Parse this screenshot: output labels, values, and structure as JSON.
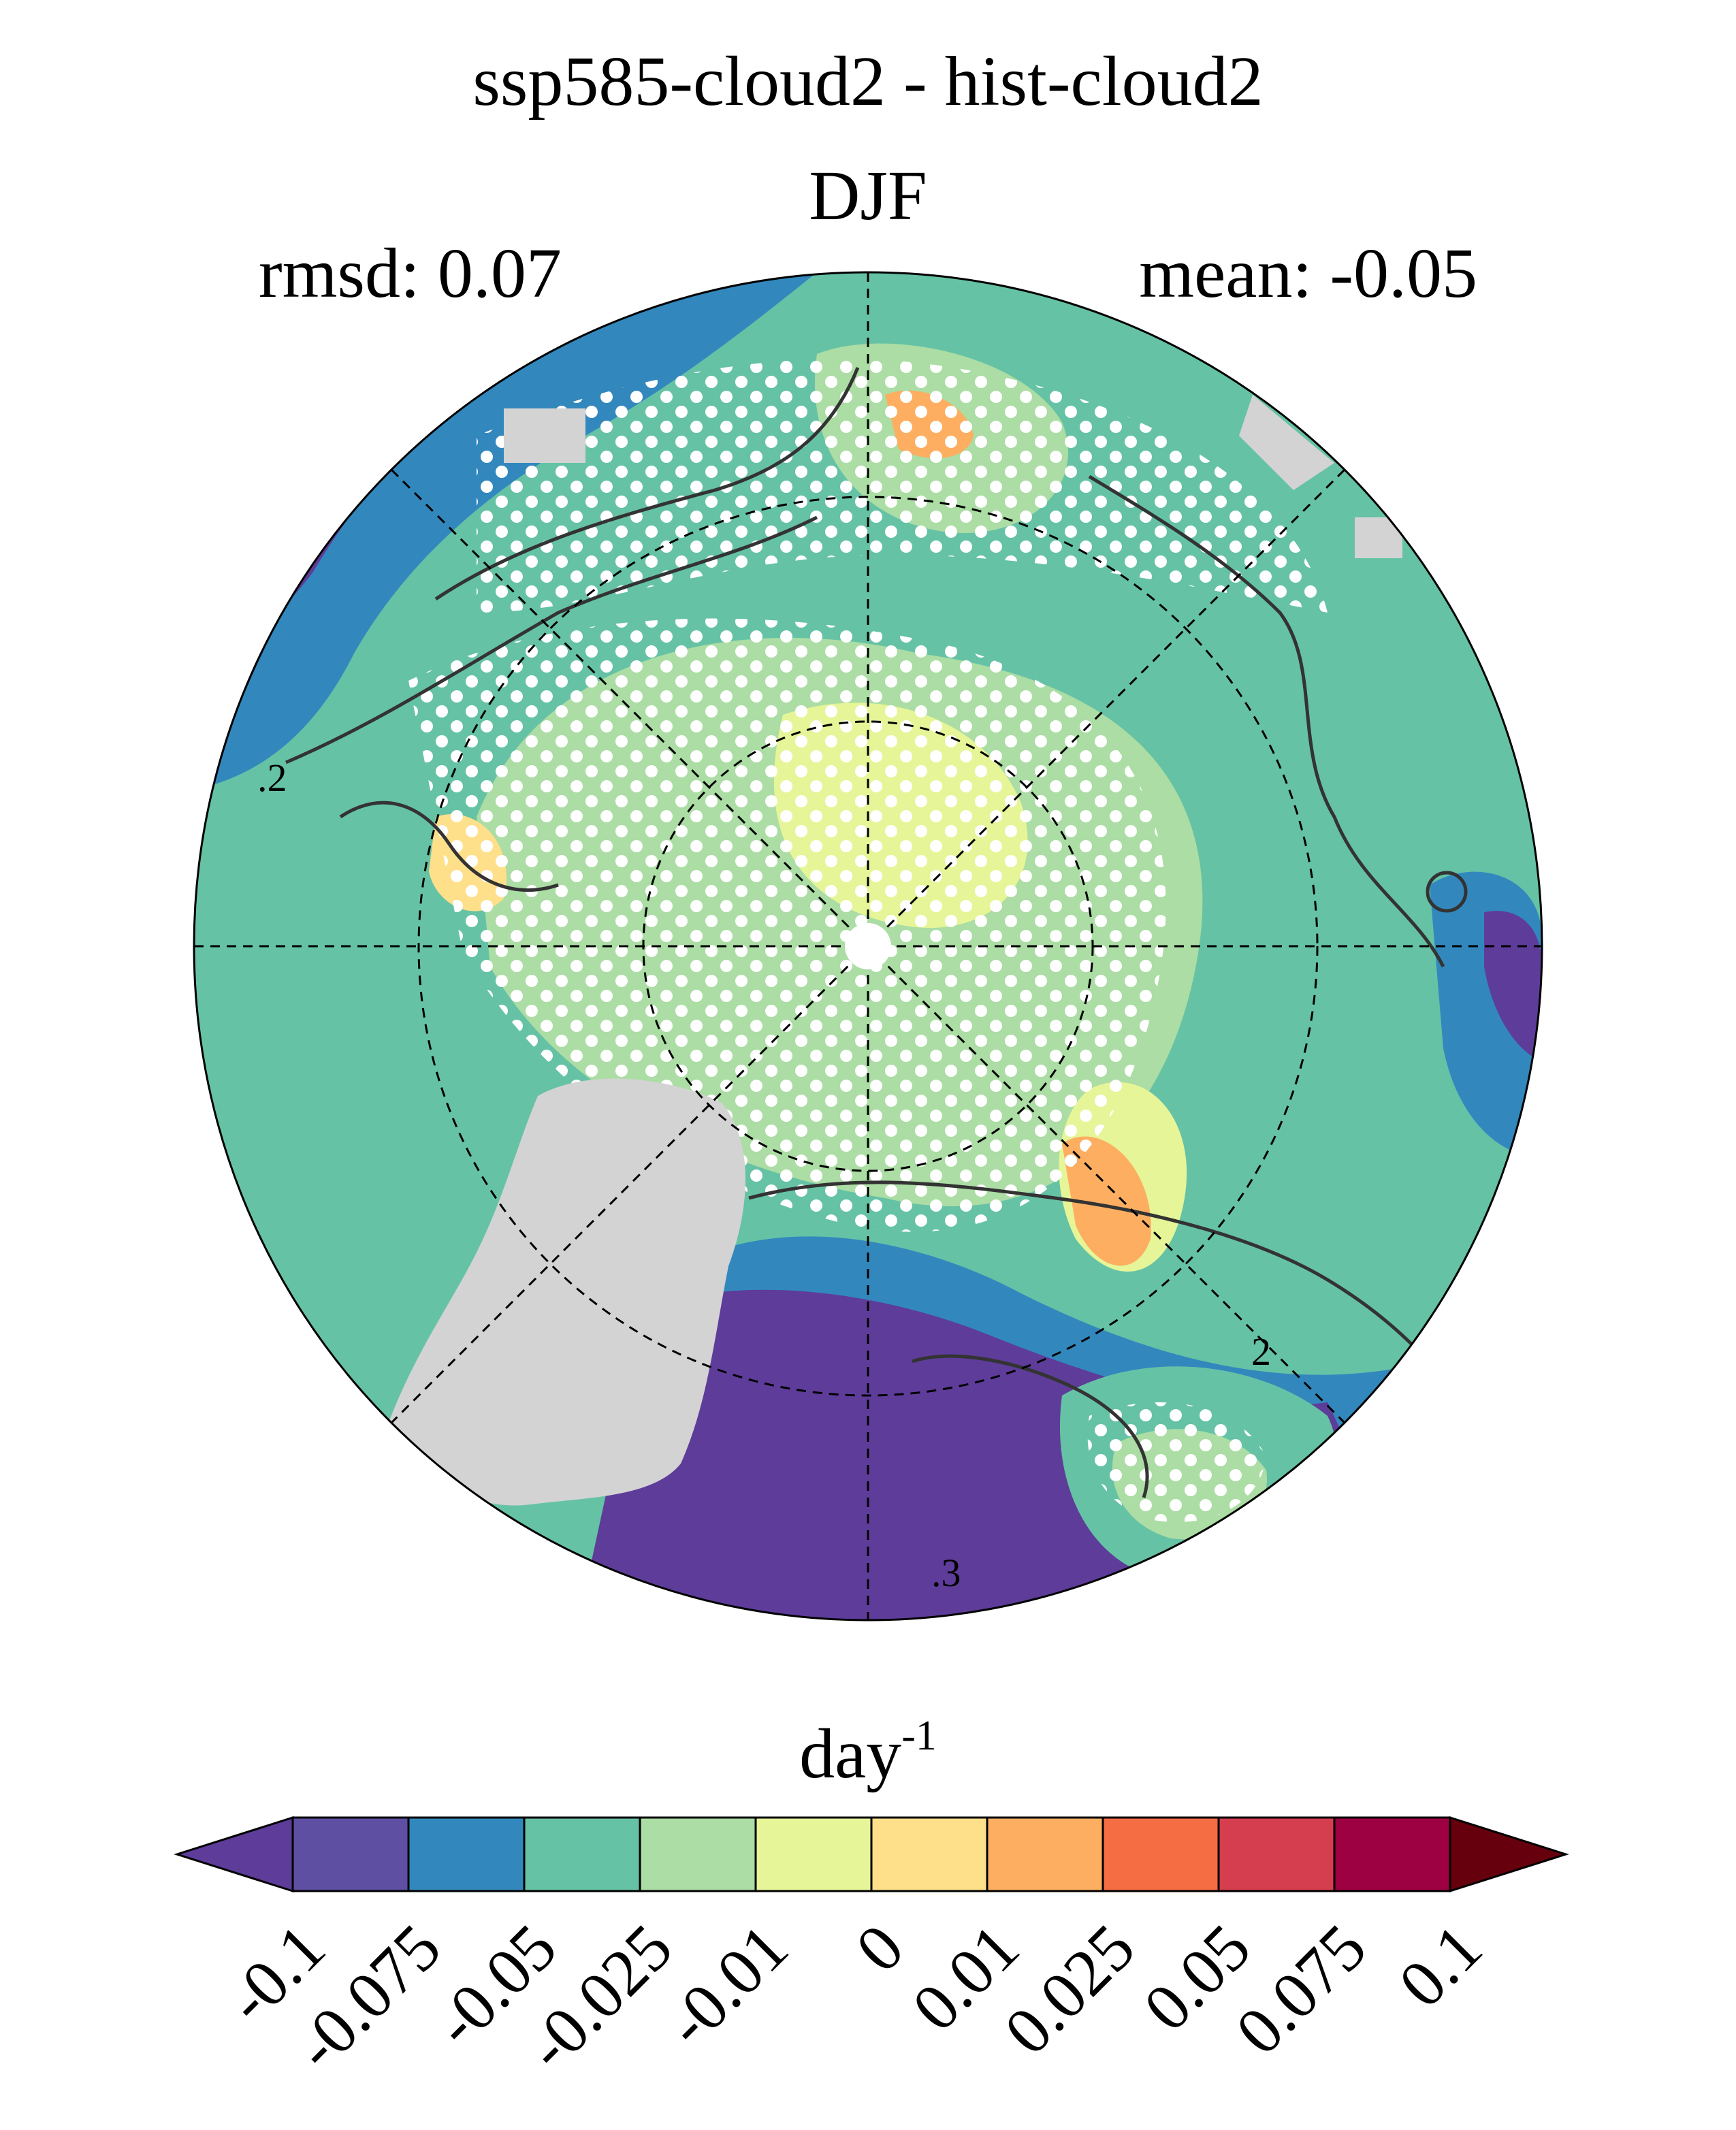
{
  "header": {
    "title": "ssp585-cloud2 - hist-cloud2",
    "season": "DJF",
    "rmsd": "rmsd: 0.07",
    "mean": "mean: -0.05"
  },
  "map": {
    "projection": "north polar stereographic",
    "contour_labels": [
      ".2",
      "2",
      ".3"
    ],
    "land_mask_color": "#d3d3d3",
    "stipple_color": "#ffffff",
    "contour_color": "#333333"
  },
  "colorbar": {
    "units": "day",
    "units_exponent": "-1",
    "ticks": [
      "-0.1",
      "-0.075",
      "-0.05",
      "-0.025",
      "-0.01",
      "0",
      "0.01",
      "0.025",
      "0.05",
      "0.075",
      "0.1"
    ],
    "colors": [
      "#5e3c99",
      "#5f4fa3",
      "#3288bd",
      "#66c2a5",
      "#abdda4",
      "#e6f598",
      "#fee08b",
      "#fdae61",
      "#f46d43",
      "#d53e4f",
      "#9e0142",
      "#67000d"
    ]
  }
}
